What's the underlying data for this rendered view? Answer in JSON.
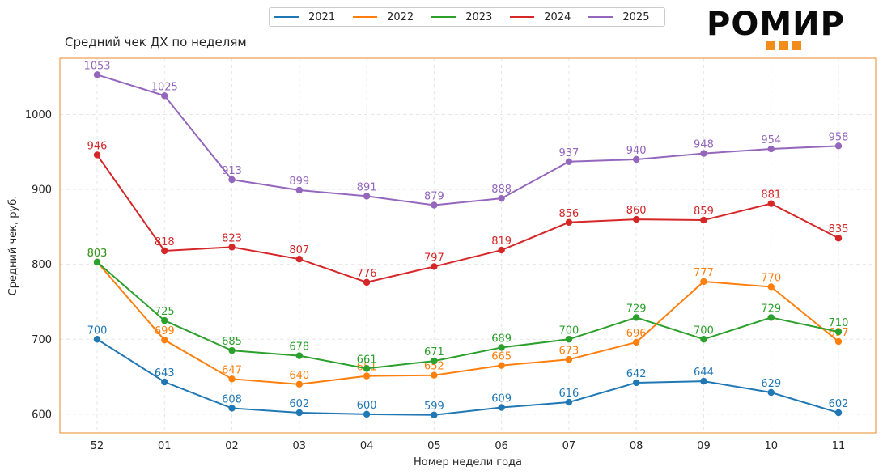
{
  "logo": {
    "text": "РОМИР"
  },
  "colors": {
    "2021": "#1f77b4",
    "2022": "#ff7f0e",
    "2023": "#2ca02c",
    "2024": "#d62728",
    "2025": "#9467bd",
    "frame": "#e8882a",
    "logo_accent": "#f28c1a"
  },
  "chart_data": {
    "type": "line",
    "title": "Средний чек ДХ по неделям",
    "xlabel": "Номер недели года",
    "ylabel": "Средний чек, руб.",
    "categories": [
      "52",
      "01",
      "02",
      "03",
      "04",
      "05",
      "06",
      "07",
      "08",
      "09",
      "10",
      "11"
    ],
    "ylim": [
      575,
      1075
    ],
    "yticks": [
      600,
      700,
      800,
      900,
      1000
    ],
    "grid": true,
    "legend_position": "top-center",
    "series": [
      {
        "name": "2021",
        "values": [
          700,
          643,
          608,
          602,
          600,
          599,
          609,
          616,
          642,
          644,
          629,
          602
        ]
      },
      {
        "name": "2022",
        "values": [
          803,
          699,
          647,
          640,
          651,
          652,
          665,
          673,
          696,
          777,
          770,
          697
        ]
      },
      {
        "name": "2023",
        "values": [
          803,
          725,
          685,
          678,
          661,
          671,
          689,
          700,
          729,
          700,
          729,
          710
        ]
      },
      {
        "name": "2024",
        "values": [
          946,
          818,
          823,
          807,
          776,
          797,
          819,
          856,
          860,
          859,
          881,
          835
        ]
      },
      {
        "name": "2025",
        "values": [
          1053,
          1025,
          913,
          899,
          891,
          879,
          888,
          937,
          940,
          948,
          954,
          958
        ]
      }
    ]
  }
}
